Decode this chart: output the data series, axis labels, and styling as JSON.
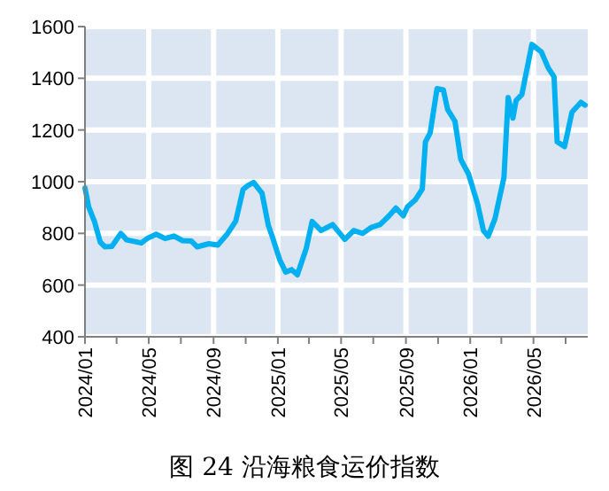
{
  "chart_data": {
    "type": "line",
    "title": "图 24 沿海粮食运价指数",
    "color": "#00b0f0",
    "grid": true,
    "xlim": [
      "2024-01-01",
      "2026-08-12"
    ],
    "ylim": [
      400,
      1600
    ],
    "yticks": [
      400,
      600,
      800,
      1000,
      1200,
      1400,
      1600
    ],
    "xticks": [
      {
        "value": "2024-01-01",
        "label": "2024/01"
      },
      {
        "value": "2024-03-01",
        "label": null
      },
      {
        "value": "2024-05-01",
        "label": "2024/05"
      },
      {
        "value": "2024-07-01",
        "label": null
      },
      {
        "value": "2024-09-01",
        "label": "2024/09"
      },
      {
        "value": "2024-11-01",
        "label": null
      },
      {
        "value": "2025-01-01",
        "label": "2025/01"
      },
      {
        "value": "2025-03-01",
        "label": null
      },
      {
        "value": "2025-05-01",
        "label": "2025/05"
      },
      {
        "value": "2025-07-01",
        "label": null
      },
      {
        "value": "2025-09-01",
        "label": "2025/09"
      },
      {
        "value": "2025-11-01",
        "label": null
      },
      {
        "value": "2026-01-01",
        "label": "2026/01"
      },
      {
        "value": "2026-03-01",
        "label": null
      },
      {
        "value": "2026-05-01",
        "label": "2026/05"
      },
      {
        "value": "2026-07-01",
        "label": null
      }
    ],
    "x": [
      "2024-01-01",
      "2024-01-08",
      "2024-01-19",
      "2024-01-30",
      "2024-02-08",
      "2024-02-21",
      "2024-03-09",
      "2024-03-20",
      "2024-04-17",
      "2024-04-28",
      "2024-05-15",
      "2024-06-01",
      "2024-06-18",
      "2024-07-04",
      "2024-07-21",
      "2024-08-01",
      "2024-08-23",
      "2024-09-09",
      "2024-09-26",
      "2024-10-13",
      "2024-10-27",
      "2024-11-05",
      "2024-11-16",
      "2024-12-02",
      "2024-12-14",
      "2024-12-21",
      "2025-01-05",
      "2025-01-16",
      "2025-01-27",
      "2025-02-07",
      "2025-02-24",
      "2025-03-07",
      "2025-03-24",
      "2025-04-15",
      "2025-05-08",
      "2025-05-25",
      "2025-06-11",
      "2025-06-27",
      "2025-07-14",
      "2025-07-31",
      "2025-08-13",
      "2025-08-27",
      "2025-09-04",
      "2025-09-19",
      "2025-10-02",
      "2025-10-08",
      "2025-10-17",
      "2025-10-30",
      "2025-11-11",
      "2025-11-19",
      "2025-12-03",
      "2025-12-14",
      "2025-12-29",
      "2026-01-15",
      "2026-01-26",
      "2026-02-04",
      "2026-02-17",
      "2026-03-06",
      "2026-03-14",
      "2026-03-23",
      "2026-03-29",
      "2026-04-09",
      "2026-04-28",
      "2026-05-16",
      "2026-05-29",
      "2026-06-09",
      "2026-06-15",
      "2026-06-29",
      "2026-07-13",
      "2026-07-30",
      "2026-08-07"
    ],
    "values": [
      976,
      903,
      846,
      766,
      748,
      750,
      800,
      775,
      763,
      780,
      797,
      780,
      790,
      772,
      770,
      748,
      760,
      755,
      795,
      847,
      970,
      985,
      997,
      955,
      830,
      790,
      695,
      650,
      660,
      640,
      743,
      846,
      811,
      834,
      777,
      811,
      800,
      823,
      834,
      868,
      898,
      868,
      903,
      930,
      971,
      1154,
      1189,
      1360,
      1355,
      1280,
      1234,
      1086,
      1029,
      914,
      811,
      789,
      857,
      1017,
      1326,
      1246,
      1314,
      1337,
      1531,
      1502,
      1440,
      1406,
      1154,
      1136,
      1269,
      1307,
      1296
    ]
  }
}
